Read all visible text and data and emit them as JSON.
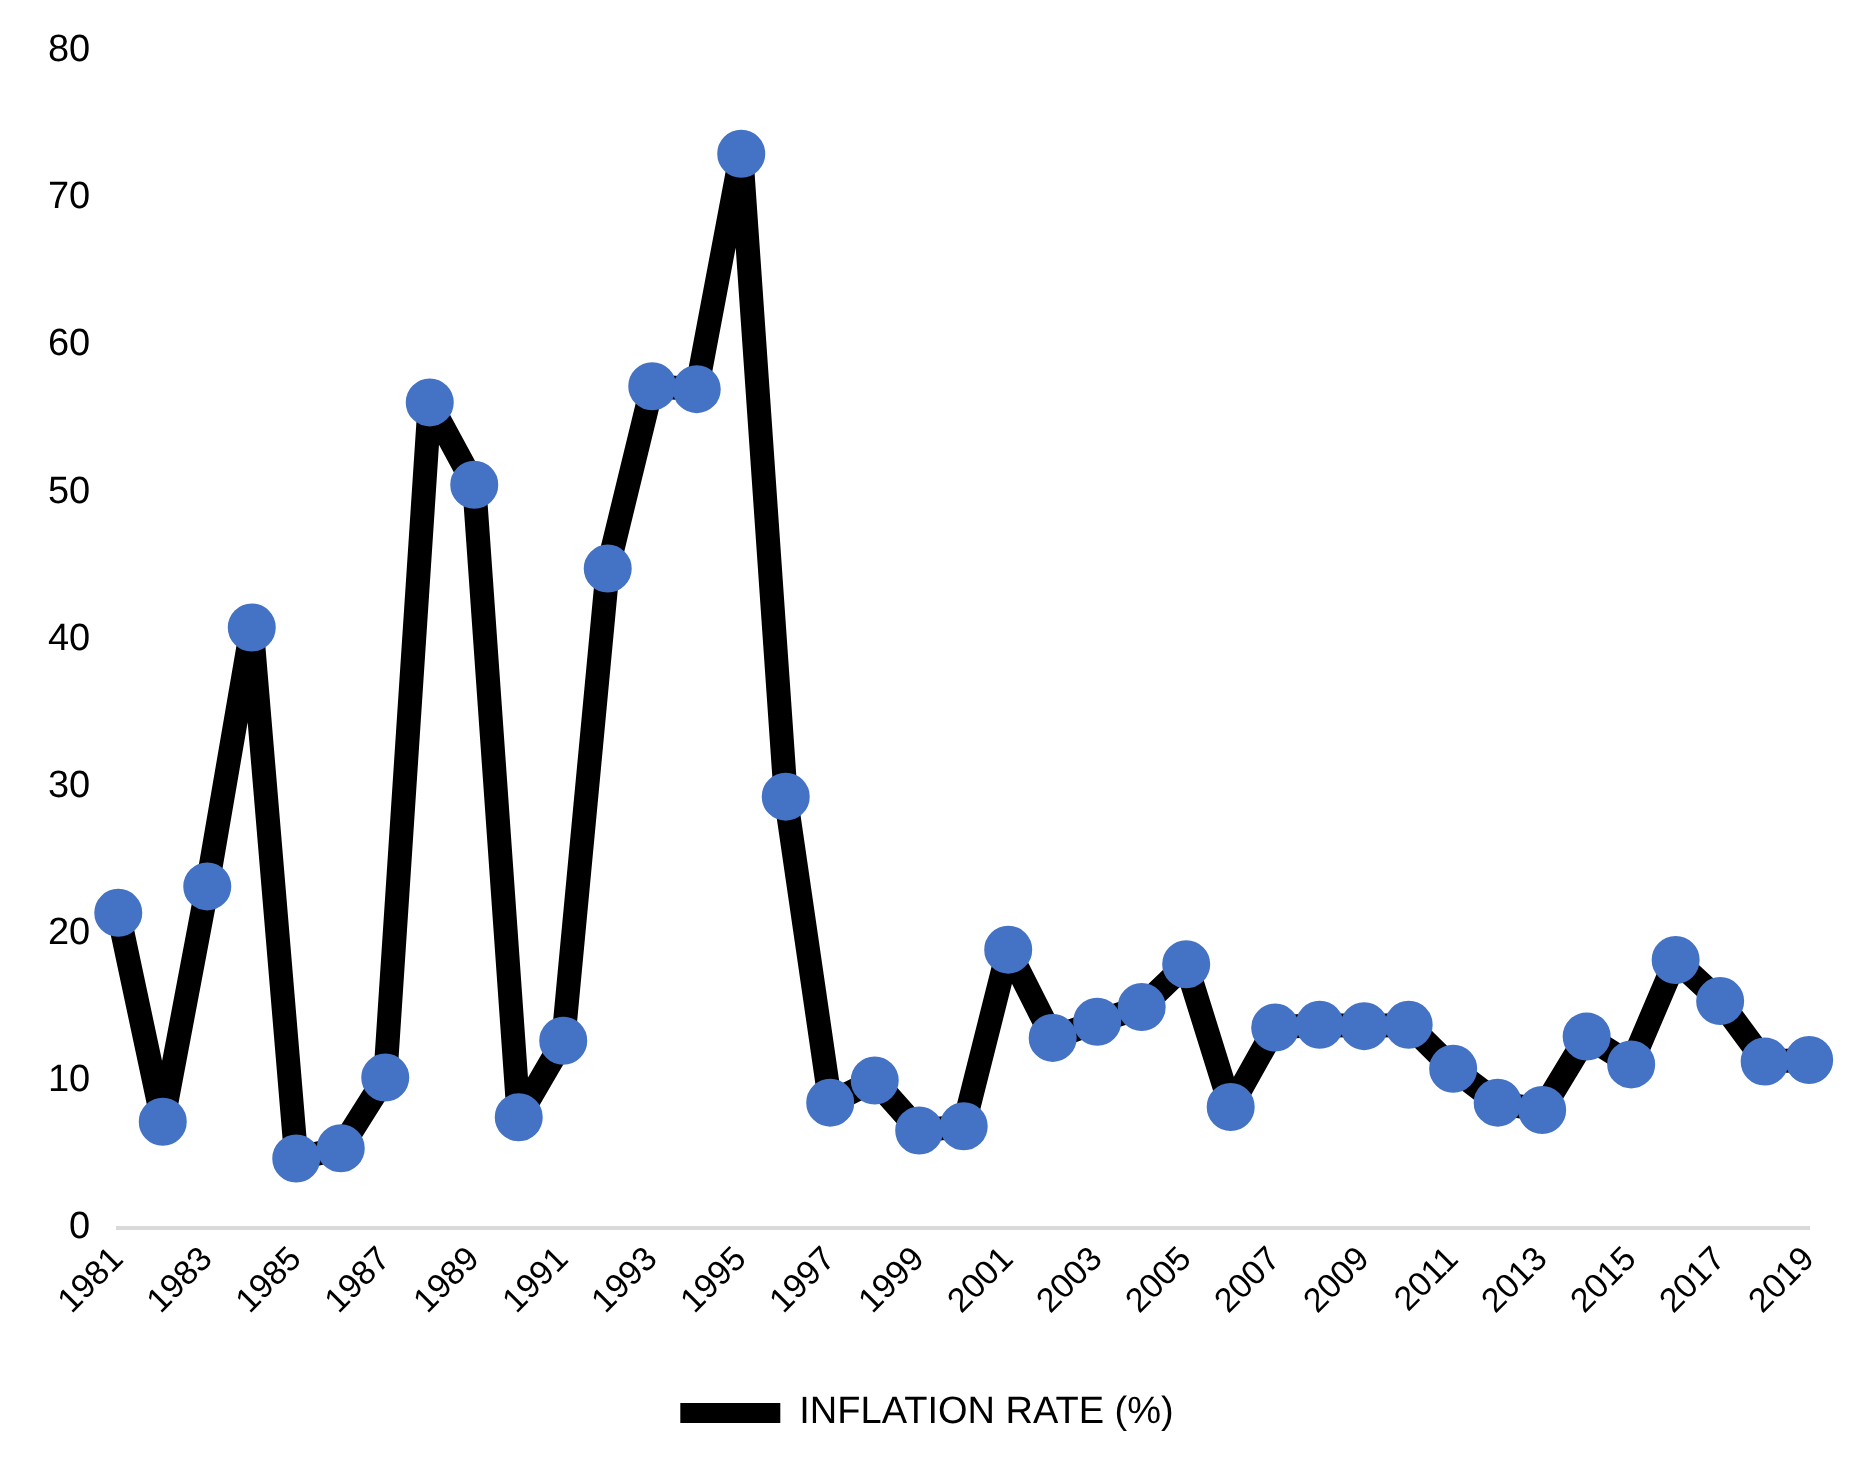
{
  "chart_data": {
    "type": "line",
    "categories": [
      "1981",
      null,
      "1983",
      null,
      "1985",
      null,
      "1987",
      null,
      "1989",
      null,
      "1991",
      null,
      "1993",
      null,
      "1995",
      null,
      "1997",
      null,
      "1999",
      null,
      "2001",
      null,
      "2003",
      null,
      "2005",
      null,
      "2007",
      null,
      "2009",
      null,
      "2011",
      null,
      "2013",
      null,
      "2015",
      null,
      "2017",
      null,
      "2019"
    ],
    "series": [
      {
        "name": "INFLATION RATE (%)",
        "color": "#000000",
        "colors": [
          "#4472c4",
          "#4472c4",
          "#4472c4",
          "#4472c4",
          "#4472c4",
          "#4472c4",
          "#4472c4",
          "#4472c4",
          "#4472c4",
          "#4472c4",
          "#4472c4",
          "#4472c4",
          "#4472c4",
          "#4472c4",
          "#4472c4",
          "#4472c4",
          "#4472c4",
          "#4472c4",
          "#4472c4",
          "#4472c4",
          "#4472c4",
          "#4472c4",
          "#4472c4",
          "#4472c4",
          "#4472c4",
          "#4472c4",
          "#4472c4",
          "#4472c4",
          "#4472c4",
          "#4472c4",
          "#4472c4",
          "#4472c4",
          "#4472c4",
          "#4472c4",
          "#4472c4",
          "#4472c4",
          "#4472c4",
          "#4472c4",
          "#4472c4"
        ],
        "values": [
          21.4,
          7.2,
          23.2,
          40.8,
          4.7,
          5.4,
          10.2,
          56.1,
          50.5,
          7.5,
          12.7,
          44.8,
          57.2,
          57.0,
          73.0,
          29.3,
          8.5,
          10.0,
          6.6,
          6.9,
          18.9,
          12.9,
          14.0,
          15.0,
          17.9,
          8.2,
          13.6,
          13.8,
          13.7,
          13.8,
          10.8,
          8.5,
          8.0,
          13.0,
          11.1,
          18.2,
          15.4,
          11.3,
          11.4
        ]
      }
    ],
    "ylim": [
      0,
      80
    ],
    "yticks": [
      0,
      10,
      20,
      30,
      40,
      50,
      60,
      70,
      80
    ],
    "grid": false,
    "legend": "bottom",
    "marker": "circle",
    "line_style": "solid"
  }
}
